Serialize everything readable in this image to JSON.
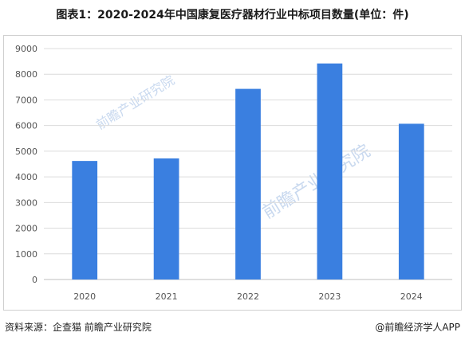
{
  "title": "图表1：2020-2024年中国康复医疗器材行业中标项目数量(单位：件)",
  "source": "资料来源：企查猫 前瞻产业研究院",
  "credit": "@前瞻经济学人APP",
  "watermark": "前瞻产业研究院",
  "colors": {
    "bar": "#3a7fe0",
    "grid": "#dcdcdc",
    "axis": "#bfbfbf"
  },
  "chart_data": {
    "type": "bar",
    "title": "图表1：2020-2024年中国康复医疗器材行业中标项目数量(单位：件)",
    "xlabel": "",
    "ylabel": "",
    "categories": [
      "2020",
      "2021",
      "2022",
      "2023",
      "2024"
    ],
    "series": [
      {
        "values": [
          4620,
          4720,
          7430,
          8420,
          6070
        ]
      }
    ],
    "ylim": [
      0,
      9000
    ],
    "yticks": [
      0,
      1000,
      2000,
      3000,
      4000,
      5000,
      6000,
      7000,
      8000,
      9000
    ],
    "grid": true,
    "legend": "none"
  }
}
